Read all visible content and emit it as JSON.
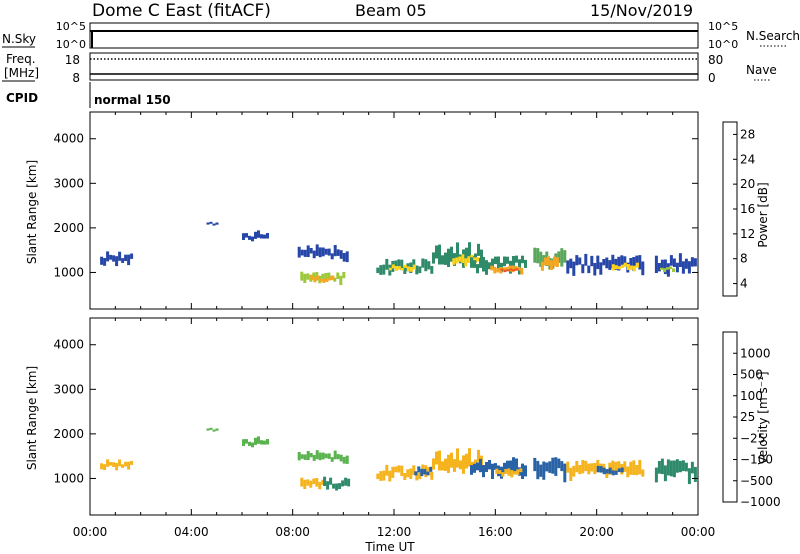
{
  "header": {
    "station": "Dome C East (fitACF)",
    "beam": "Beam 05",
    "date": "15/Nov/2019"
  },
  "status_panels": {
    "nsky": {
      "label": "N.Sky",
      "ticks": [
        "10^5",
        "10^0"
      ]
    },
    "nsearch": {
      "label": "N.Search",
      "ticks": [
        "10^5",
        "10^0"
      ]
    },
    "freq": {
      "label_line1": "Freq.",
      "label_line2": "[MHz]",
      "ticks": [
        "18",
        "8"
      ]
    },
    "nave": {
      "label": "Nave",
      "ticks": [
        "80",
        "0"
      ]
    },
    "cpid": {
      "label": "CPID",
      "value": "normal 150"
    }
  },
  "power_colorbar": {
    "label": "Power [dB]",
    "ticks": [
      "4",
      "8",
      "12",
      "16",
      "20",
      "24",
      "28"
    ],
    "colors": [
      "#1f2bd6",
      "#2747a8",
      "#2f8a6a",
      "#5aa65a",
      "#9cc83a",
      "#ffd21e",
      "#f7a623",
      "#f07a1e",
      "#ec5521",
      "#e8201e"
    ]
  },
  "velocity_colorbar": {
    "label": "Velocity [m s⁻¹]",
    "ticks": [
      "1000",
      "500",
      "100",
      "25",
      "−25",
      "−100",
      "−500",
      "−1000"
    ],
    "colors": [
      "#1f3bb8",
      "#2a62a6",
      "#2e8a6a",
      "#5ab34e",
      "#c8c8c8",
      "#f5b41e",
      "#f07a1e",
      "#e8201e"
    ]
  },
  "axes": {
    "xlabel": "Time UT",
    "ylabel": "Slant Range [km]"
  },
  "chart_data": [
    {
      "type": "heatmap",
      "title": "Power",
      "xlabel": "",
      "ylabel": "Slant Range [km]",
      "xlim": [
        0,
        24
      ],
      "ylim": [
        180,
        4600
      ],
      "x_ticks": [],
      "y_ticks": [
        "1000",
        "2000",
        "3000",
        "4000"
      ],
      "y_tick_values": [
        1000,
        2000,
        3000,
        4000
      ],
      "value_label": "Power [dB]",
      "regions": [
        {
          "t": [
            0.4,
            1.6
          ],
          "r": [
            1100,
            1500
          ],
          "value": 6
        },
        {
          "t": [
            4.6,
            5.0
          ],
          "r": [
            2050,
            2150
          ],
          "value": 6
        },
        {
          "t": [
            6.0,
            7.0
          ],
          "r": [
            1650,
            1950
          ],
          "value": 6
        },
        {
          "t": [
            8.2,
            10.2
          ],
          "r": [
            1200,
            1650
          ],
          "value": 6
        },
        {
          "t": [
            8.3,
            10.0
          ],
          "r": [
            700,
            1050
          ],
          "value": 15
        },
        {
          "t": [
            8.7,
            9.6
          ],
          "r": [
            750,
            950
          ],
          "value": 20
        },
        {
          "t": [
            11.3,
            13.5
          ],
          "r": [
            900,
            1350
          ],
          "value": 8
        },
        {
          "t": [
            11.8,
            12.8
          ],
          "r": [
            1000,
            1200
          ],
          "value": 17
        },
        {
          "t": [
            13.5,
            15.5
          ],
          "r": [
            1000,
            1750
          ],
          "value": 9
        },
        {
          "t": [
            14.3,
            15.3
          ],
          "r": [
            1050,
            1450
          ],
          "value": 16
        },
        {
          "t": [
            15.0,
            17.2
          ],
          "r": [
            900,
            1500
          ],
          "value": 8
        },
        {
          "t": [
            15.8,
            17.0
          ],
          "r": [
            950,
            1200
          ],
          "value": 20
        },
        {
          "t": [
            16.2,
            16.8
          ],
          "r": [
            1000,
            1100
          ],
          "value": 26
        },
        {
          "t": [
            17.5,
            18.8
          ],
          "r": [
            900,
            1600
          ],
          "value": 13
        },
        {
          "t": [
            17.8,
            18.5
          ],
          "r": [
            1000,
            1400
          ],
          "value": 21
        },
        {
          "t": [
            18.8,
            21.8
          ],
          "r": [
            900,
            1450
          ],
          "value": 7
        },
        {
          "t": [
            20.6,
            21.6
          ],
          "r": [
            1000,
            1250
          ],
          "value": 16
        },
        {
          "t": [
            22.3,
            23.9
          ],
          "r": [
            850,
            1500
          ],
          "value": 6
        },
        {
          "t": [
            22.5,
            23.0
          ],
          "r": [
            1000,
            1150
          ],
          "value": 15
        }
      ]
    },
    {
      "type": "heatmap",
      "title": "Velocity",
      "xlabel": "Time UT",
      "ylabel": "Slant Range [km]",
      "xlim": [
        0,
        24
      ],
      "ylim": [
        180,
        4600
      ],
      "x_ticks": [
        "00:00",
        "04:00",
        "08:00",
        "12:00",
        "16:00",
        "20:00",
        "00:00"
      ],
      "x_tick_values": [
        0,
        4,
        8,
        12,
        16,
        20,
        24
      ],
      "y_ticks": [
        "1000",
        "2000",
        "3000",
        "4000"
      ],
      "y_tick_values": [
        1000,
        2000,
        3000,
        4000
      ],
      "value_label": "Velocity [m s⁻¹]",
      "regions": [
        {
          "t": [
            0.4,
            1.6
          ],
          "r": [
            1150,
            1450
          ],
          "value": -150
        },
        {
          "t": [
            4.6,
            5.0
          ],
          "r": [
            2050,
            2150
          ],
          "value": 0
        },
        {
          "t": [
            6.0,
            7.0
          ],
          "r": [
            1650,
            1950
          ],
          "value": 0
        },
        {
          "t": [
            8.2,
            10.2
          ],
          "r": [
            1300,
            1650
          ],
          "value": 0
        },
        {
          "t": [
            8.3,
            9.2
          ],
          "r": [
            700,
            1050
          ],
          "value": -150
        },
        {
          "t": [
            9.2,
            10.2
          ],
          "r": [
            700,
            1050
          ],
          "value": 60
        },
        {
          "t": [
            11.3,
            13.5
          ],
          "r": [
            900,
            1350
          ],
          "value": -150
        },
        {
          "t": [
            12.8,
            13.5
          ],
          "r": [
            1000,
            1300
          ],
          "value": 150
        },
        {
          "t": [
            13.5,
            15.5
          ],
          "r": [
            1000,
            1750
          ],
          "value": -150
        },
        {
          "t": [
            15.0,
            17.2
          ],
          "r": [
            900,
            1500
          ],
          "value": 200
        },
        {
          "t": [
            16.0,
            17.0
          ],
          "r": [
            1000,
            1300
          ],
          "value": -150
        },
        {
          "t": [
            17.5,
            18.8
          ],
          "r": [
            900,
            1600
          ],
          "value": 150
        },
        {
          "t": [
            18.8,
            21.8
          ],
          "r": [
            900,
            1450
          ],
          "value": -150
        },
        {
          "t": [
            20.0,
            21.0
          ],
          "r": [
            1000,
            1300
          ],
          "value": 150
        },
        {
          "t": [
            22.3,
            23.9
          ],
          "r": [
            850,
            1500
          ],
          "value": 60
        }
      ]
    }
  ]
}
